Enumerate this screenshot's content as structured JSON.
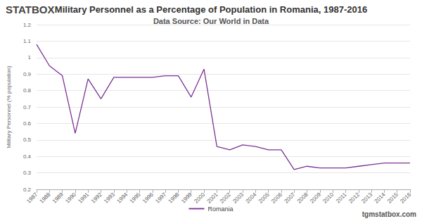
{
  "chart_data": {
    "type": "line",
    "title": "Military Personnel as a Percentage of Population in Romania, 1987-2016",
    "subtitle": "Data Source: Our World in Data",
    "y_label": "Military Personnel (% population)",
    "annotations": [
      "STATBOX",
      "tgmstatbox.com"
    ],
    "categories": [
      "1987",
      "1988",
      "1989",
      "1990",
      "1991",
      "1992",
      "1993",
      "1994",
      "1995",
      "1996",
      "1997",
      "1998",
      "1999",
      "2000",
      "2001",
      "2002",
      "2003",
      "2004",
      "2005",
      "2006",
      "2007",
      "2008",
      "2009",
      "2010",
      "2011",
      "2012",
      "2013",
      "2014",
      "2015",
      "2016"
    ],
    "series": [
      {
        "name": "Romania",
        "color": "#7b3294",
        "values": [
          1.08,
          0.95,
          0.89,
          0.54,
          0.87,
          0.75,
          0.88,
          0.88,
          0.88,
          0.88,
          0.89,
          0.89,
          0.76,
          0.93,
          0.46,
          0.44,
          0.47,
          0.46,
          0.44,
          0.44,
          0.32,
          0.34,
          0.33,
          0.33,
          0.33,
          0.34,
          0.35,
          0.36,
          0.36,
          0.36
        ]
      }
    ],
    "ylim": [
      0.2,
      1.2
    ],
    "yticks": [
      0.2,
      0.3,
      0.4,
      0.5,
      0.6,
      0.7,
      0.8,
      0.9,
      1,
      1.1,
      1.2
    ],
    "grid": true,
    "legend": "bottom"
  }
}
